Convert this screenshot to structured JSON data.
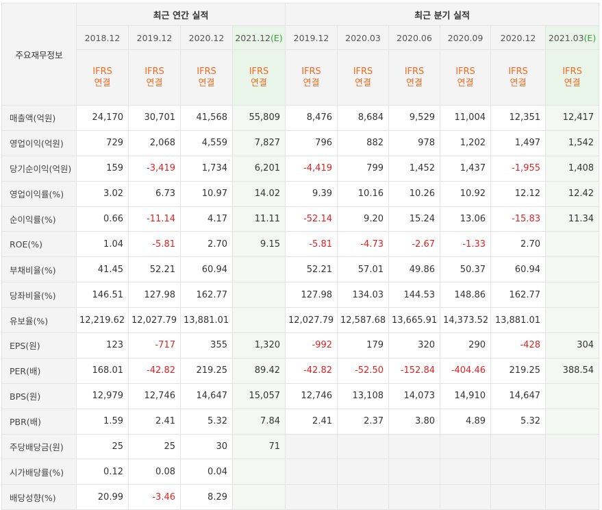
{
  "header": {
    "corner": "주요재무정보",
    "annual_group": "최근 연간 실적",
    "quarterly_group": "최근 분기 실적",
    "annual_periods": [
      "2018.12",
      "2019.12",
      "2020.12",
      "2021.12"
    ],
    "annual_estimate_suffix": "(E)",
    "quarterly_periods": [
      "2019.12",
      "2020.03",
      "2020.06",
      "2020.09",
      "2020.12",
      "2021.03"
    ],
    "quarterly_estimate_suffix": "(E)",
    "ifrs_line1": "IFRS",
    "ifrs_line2": "연결"
  },
  "rows": [
    {
      "label": "매출액(억원)",
      "annual": [
        "24,170",
        "30,701",
        "41,568",
        "55,809"
      ],
      "quarterly": [
        "8,476",
        "8,684",
        "9,529",
        "11,004",
        "12,351",
        "12,417"
      ]
    },
    {
      "label": "영업이익(억원)",
      "annual": [
        "729",
        "2,068",
        "4,559",
        "7,827"
      ],
      "quarterly": [
        "796",
        "882",
        "978",
        "1,202",
        "1,497",
        "1,542"
      ]
    },
    {
      "label": "당기순이익(억원)",
      "annual": [
        "159",
        "-3,419",
        "1,734",
        "6,201"
      ],
      "quarterly": [
        "-4,419",
        "799",
        "1,452",
        "1,437",
        "-1,955",
        "1,408"
      ]
    },
    {
      "label": "영업이익률(%)",
      "annual": [
        "3.02",
        "6.73",
        "10.97",
        "14.02"
      ],
      "quarterly": [
        "9.39",
        "10.16",
        "10.26",
        "10.92",
        "12.12",
        "12.42"
      ]
    },
    {
      "label": "순이익률(%)",
      "annual": [
        "0.66",
        "-11.14",
        "4.17",
        "11.11"
      ],
      "quarterly": [
        "-52.14",
        "9.20",
        "15.24",
        "13.06",
        "-15.83",
        "11.34"
      ]
    },
    {
      "label": "ROE(%)",
      "annual": [
        "1.04",
        "-5.81",
        "2.70",
        "9.15"
      ],
      "quarterly": [
        "-5.81",
        "-4.73",
        "-2.67",
        "-1.33",
        "2.70",
        ""
      ]
    },
    {
      "label": "부채비율(%)",
      "annual": [
        "41.45",
        "52.21",
        "60.94",
        ""
      ],
      "quarterly": [
        "52.21",
        "57.01",
        "49.86",
        "50.37",
        "60.94",
        ""
      ]
    },
    {
      "label": "당좌비율(%)",
      "annual": [
        "146.51",
        "127.98",
        "162.77",
        ""
      ],
      "quarterly": [
        "127.98",
        "134.03",
        "144.53",
        "148.86",
        "162.77",
        ""
      ]
    },
    {
      "label": "유보율(%)",
      "annual": [
        "12,219.62",
        "12,027.79",
        "13,881.01",
        ""
      ],
      "quarterly": [
        "12,027.79",
        "12,587.68",
        "13,665.91",
        "14,373.52",
        "13,881.01",
        ""
      ]
    },
    {
      "label": "EPS(원)",
      "annual": [
        "123",
        "-717",
        "355",
        "1,320"
      ],
      "quarterly": [
        "-992",
        "179",
        "320",
        "290",
        "-428",
        "304"
      ]
    },
    {
      "label": "PER(배)",
      "annual": [
        "168.01",
        "-42.82",
        "219.25",
        "89.42"
      ],
      "quarterly": [
        "-42.82",
        "-52.50",
        "-152.84",
        "-404.46",
        "219.25",
        "388.54"
      ]
    },
    {
      "label": "BPS(원)",
      "annual": [
        "12,979",
        "12,746",
        "14,647",
        "15,057"
      ],
      "quarterly": [
        "12,746",
        "13,108",
        "14,073",
        "14,910",
        "14,647",
        ""
      ]
    },
    {
      "label": "PBR(배)",
      "annual": [
        "1.59",
        "2.41",
        "5.32",
        "7.84"
      ],
      "quarterly": [
        "2.41",
        "2.37",
        "3.80",
        "4.89",
        "5.32",
        ""
      ]
    },
    {
      "label": "주당배당금(원)",
      "annual": [
        "25",
        "25",
        "30",
        "71"
      ],
      "quarterly": [
        "",
        "",
        "",
        "",
        "",
        ""
      ],
      "quarterly_blank": true
    },
    {
      "label": "시가배당률(%)",
      "annual": [
        "0.12",
        "0.08",
        "0.04",
        ""
      ],
      "quarterly": [
        "",
        "",
        "",
        "",
        "",
        ""
      ],
      "quarterly_blank": true
    },
    {
      "label": "배당성향(%)",
      "annual": [
        "20.99",
        "-3.46",
        "8.29",
        ""
      ],
      "quarterly": [
        "",
        "",
        "",
        "",
        "",
        ""
      ],
      "quarterly_blank": true
    }
  ],
  "group_start_rows": [
    3,
    6,
    9,
    13
  ]
}
